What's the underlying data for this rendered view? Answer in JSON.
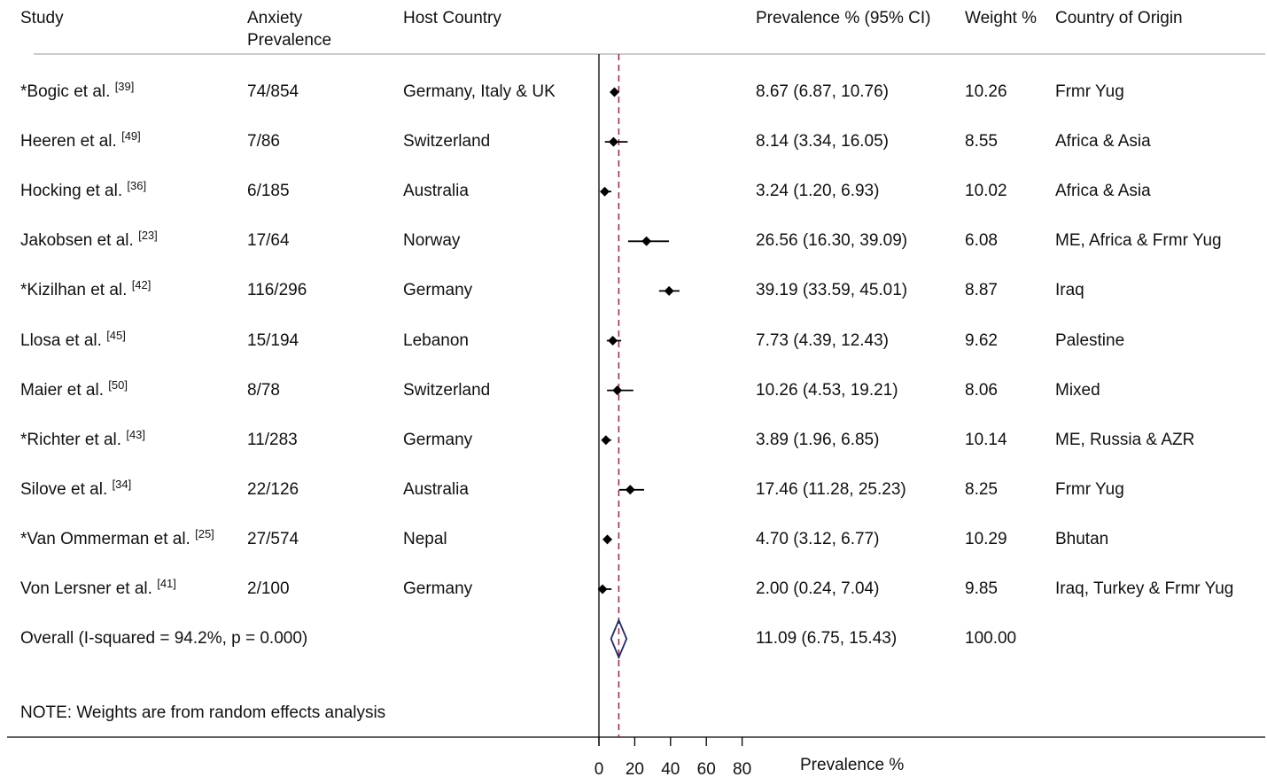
{
  "headers": {
    "study": "Study",
    "anxiety_line1": "Anxiety",
    "anxiety_line2": "Prevalence",
    "host": "Host Country",
    "ci": "Prevalence % (95% CI)",
    "weight": "Weight %",
    "origin": "Country of Origin"
  },
  "rows": [
    {
      "study": "*Bogic et al.",
      "ref": "[39]",
      "anxiety": "74/854",
      "host": "Germany, Italy & UK",
      "ci_text": "8.67 (6.87, 10.76)",
      "weight": "10.26",
      "origin": "Frmr Yug"
    },
    {
      "study": "Heeren et al.",
      "ref": "[49]",
      "anxiety": "7/86",
      "host": "Switzerland",
      "ci_text": "8.14 (3.34, 16.05)",
      "weight": "8.55",
      "origin": "Africa & Asia"
    },
    {
      "study": "Hocking et al.",
      "ref": "[36]",
      "anxiety": "6/185",
      "host": "Australia",
      "ci_text": "3.24 (1.20, 6.93)",
      "weight": "10.02",
      "origin": "Africa & Asia"
    },
    {
      "study": "Jakobsen et al.",
      "ref": "[23]",
      "anxiety": "17/64",
      "host": "Norway",
      "ci_text": "26.56 (16.30, 39.09)",
      "weight": "6.08",
      "origin": "ME, Africa & Frmr Yug"
    },
    {
      "study": "*Kizilhan et al.",
      "ref": "[42]",
      "anxiety": "116/296",
      "host": "Germany",
      "ci_text": "39.19 (33.59, 45.01)",
      "weight": "8.87",
      "origin": "Iraq"
    },
    {
      "study": "Llosa et al.",
      "ref": "[45]",
      "anxiety": "15/194",
      "host": "Lebanon",
      "ci_text": "7.73 (4.39, 12.43)",
      "weight": "9.62",
      "origin": "Palestine"
    },
    {
      "study": "Maier et al.",
      "ref": "[50]",
      "anxiety": "8/78",
      "host": "Switzerland",
      "ci_text": "10.26 (4.53, 19.21)",
      "weight": "8.06",
      "origin": "Mixed"
    },
    {
      "study": "*Richter et al.",
      "ref": "[43]",
      "anxiety": "11/283",
      "host": "Germany",
      "ci_text": "3.89 (1.96, 6.85)",
      "weight": "10.14",
      "origin": "ME, Russia & AZR"
    },
    {
      "study": "Silove et al.",
      "ref": "[34]",
      "anxiety": "22/126",
      "host": "Australia",
      "ci_text": "17.46 (11.28, 25.23)",
      "weight": "8.25",
      "origin": "Frmr Yug"
    },
    {
      "study": "*Van Ommerman et al.",
      "ref": "[25]",
      "anxiety": "27/574",
      "host": "Nepal",
      "ci_text": "4.70 (3.12, 6.77)",
      "weight": "10.29",
      "origin": "Bhutan"
    },
    {
      "study": "Von Lersner et al.",
      "ref": "[41]",
      "anxiety": "2/100",
      "host": "Germany",
      "ci_text": "2.00 (0.24, 7.04)",
      "weight": "9.85",
      "origin": "Iraq, Turkey & Frmr Yug"
    }
  ],
  "overall": {
    "label": "Overall  (I-squared = 94.2%, p = 0.000)",
    "ci_text": "11.09 (6.75, 15.43)",
    "weight": "100.00"
  },
  "note": "NOTE: Weights are from random effects analysis",
  "chart_data": {
    "type": "forest",
    "xlabel": "Prevalence %",
    "xticks": [
      0,
      20,
      40,
      60,
      80
    ],
    "xlim": [
      0,
      80
    ],
    "reference_line": 11.09,
    "studies": [
      {
        "estimate": 8.67,
        "lower": 6.87,
        "upper": 10.76
      },
      {
        "estimate": 8.14,
        "lower": 3.34,
        "upper": 16.05
      },
      {
        "estimate": 3.24,
        "lower": 1.2,
        "upper": 6.93
      },
      {
        "estimate": 26.56,
        "lower": 16.3,
        "upper": 39.09
      },
      {
        "estimate": 39.19,
        "lower": 33.59,
        "upper": 45.01
      },
      {
        "estimate": 7.73,
        "lower": 4.39,
        "upper": 12.43
      },
      {
        "estimate": 10.26,
        "lower": 4.53,
        "upper": 19.21
      },
      {
        "estimate": 3.89,
        "lower": 1.96,
        "upper": 6.85
      },
      {
        "estimate": 17.46,
        "lower": 11.28,
        "upper": 25.23
      },
      {
        "estimate": 4.7,
        "lower": 3.12,
        "upper": 6.77
      },
      {
        "estimate": 2.0,
        "lower": 0.24,
        "upper": 7.04
      }
    ],
    "overall": {
      "estimate": 11.09,
      "lower": 6.75,
      "upper": 15.43
    },
    "colors": {
      "marker": "#000000",
      "reference": "#a0233c",
      "diamond": "#1f2a6b",
      "axis": "#000000"
    }
  }
}
